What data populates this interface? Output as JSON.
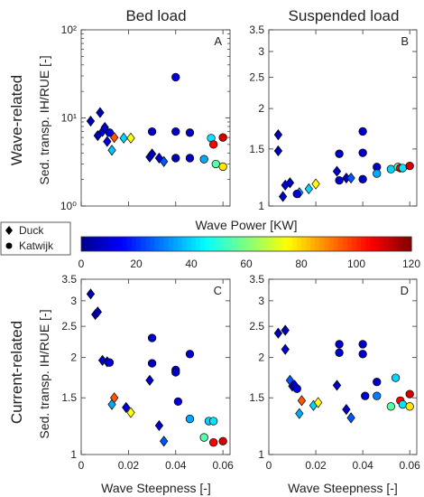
{
  "figure": {
    "col_titles": [
      "Bed load",
      "Suspended load"
    ],
    "row_titles": [
      "Wave-related",
      "Current-related"
    ],
    "ylabel": "Sed. transp. IH/RUE [-]",
    "xlabel": "Wave Steepness [-]",
    "colorbar": {
      "label": "Wave Power [KW]",
      "min": 0,
      "max": 120,
      "ticks": [
        "0",
        "20",
        "40",
        "60",
        "80",
        "100",
        "120"
      ]
    },
    "legend": [
      {
        "label": "Duck",
        "marker": "diamond"
      },
      {
        "label": "Katwijk",
        "marker": "circle"
      }
    ],
    "colormap": [
      "#00008f",
      "#0000ff",
      "#0080ff",
      "#00ffff",
      "#80ff80",
      "#ffff00",
      "#ff8000",
      "#ff0000",
      "#800000"
    ]
  },
  "chart_data": [
    {
      "panel": "A",
      "type": "scatter",
      "title": "Bed load",
      "ylabel": "Sed. transp. IH/RUE [-]",
      "xlim": [
        0,
        0.063
      ],
      "ylim": [
        1,
        100
      ],
      "yscale": "log",
      "xticks": [],
      "yticks": [
        1,
        10,
        100
      ],
      "ytick_labels": [
        "10⁰",
        "10¹",
        "10²"
      ],
      "series": [
        {
          "name": "Duck",
          "marker": "diamond",
          "points": [
            {
              "x": 0.004,
              "y": 9.2,
              "c": 5
            },
            {
              "x": 0.007,
              "y": 6.3,
              "c": 5
            },
            {
              "x": 0.008,
              "y": 11.5,
              "c": 5
            },
            {
              "x": 0.009,
              "y": 7.0,
              "c": 10
            },
            {
              "x": 0.01,
              "y": 7.8,
              "c": 8
            },
            {
              "x": 0.011,
              "y": 5.4,
              "c": 10
            },
            {
              "x": 0.013,
              "y": 4.3,
              "c": 38
            },
            {
              "x": 0.014,
              "y": 6.0,
              "c": 95
            },
            {
              "x": 0.018,
              "y": 5.9,
              "c": 40
            },
            {
              "x": 0.021,
              "y": 5.9,
              "c": 75
            },
            {
              "x": 0.029,
              "y": 3.6,
              "c": 8
            },
            {
              "x": 0.03,
              "y": 3.9,
              "c": 5
            },
            {
              "x": 0.033,
              "y": 3.5,
              "c": 8
            },
            {
              "x": 0.035,
              "y": 3.2,
              "c": 25
            }
          ]
        },
        {
          "name": "Katwijk",
          "marker": "circle",
          "points": [
            {
              "x": 0.012,
              "y": 6.8,
              "c": 10
            },
            {
              "x": 0.03,
              "y": 7.0,
              "c": 8
            },
            {
              "x": 0.04,
              "y": 29.0,
              "c": 10
            },
            {
              "x": 0.04,
              "y": 7.0,
              "c": 8
            },
            {
              "x": 0.04,
              "y": 3.5,
              "c": 5
            },
            {
              "x": 0.046,
              "y": 6.8,
              "c": 8
            },
            {
              "x": 0.046,
              "y": 3.5,
              "c": 8
            },
            {
              "x": 0.052,
              "y": 3.4,
              "c": 35
            },
            {
              "x": 0.055,
              "y": 5.9,
              "c": 42
            },
            {
              "x": 0.056,
              "y": 5.0,
              "c": 105
            },
            {
              "x": 0.057,
              "y": 3.0,
              "c": 55
            },
            {
              "x": 0.06,
              "y": 6.0,
              "c": 110
            },
            {
              "x": 0.06,
              "y": 2.8,
              "c": 78
            }
          ]
        }
      ]
    },
    {
      "panel": "B",
      "type": "scatter",
      "title": "Suspended load",
      "xlim": [
        0,
        0.063
      ],
      "ylim": [
        1,
        3.5
      ],
      "yscale": "log",
      "xticks": [],
      "yticks": [
        1,
        1.5,
        2,
        2.5,
        3,
        3.5
      ],
      "ytick_labels": [
        "1",
        "1.5",
        "2",
        "2.5",
        "3",
        "3.5"
      ],
      "series": [
        {
          "name": "Duck",
          "marker": "diamond",
          "points": [
            {
              "x": 0.004,
              "y": 1.66,
              "c": 5
            },
            {
              "x": 0.004,
              "y": 1.48,
              "c": 5
            },
            {
              "x": 0.006,
              "y": 1.07,
              "c": 8
            },
            {
              "x": 0.007,
              "y": 1.16,
              "c": 10
            },
            {
              "x": 0.009,
              "y": 1.18,
              "c": 8
            },
            {
              "x": 0.013,
              "y": 1.1,
              "c": 35
            },
            {
              "x": 0.017,
              "y": 1.13,
              "c": 40
            },
            {
              "x": 0.02,
              "y": 1.17,
              "c": 75
            },
            {
              "x": 0.029,
              "y": 1.28,
              "c": 8
            },
            {
              "x": 0.033,
              "y": 1.22,
              "c": 8
            },
            {
              "x": 0.035,
              "y": 1.22,
              "c": 25
            }
          ]
        },
        {
          "name": "Katwijk",
          "marker": "circle",
          "points": [
            {
              "x": 0.012,
              "y": 1.09,
              "c": 10
            },
            {
              "x": 0.03,
              "y": 1.2,
              "c": 8
            },
            {
              "x": 0.03,
              "y": 1.45,
              "c": 8
            },
            {
              "x": 0.04,
              "y": 1.7,
              "c": 8
            },
            {
              "x": 0.04,
              "y": 1.46,
              "c": 8
            },
            {
              "x": 0.04,
              "y": 1.21,
              "c": 8
            },
            {
              "x": 0.046,
              "y": 1.32,
              "c": 8
            },
            {
              "x": 0.046,
              "y": 1.26,
              "c": 35
            },
            {
              "x": 0.052,
              "y": 1.3,
              "c": 40
            },
            {
              "x": 0.055,
              "y": 1.32,
              "c": 55
            },
            {
              "x": 0.056,
              "y": 1.31,
              "c": 105
            },
            {
              "x": 0.057,
              "y": 1.31,
              "c": 42
            },
            {
              "x": 0.06,
              "y": 1.33,
              "c": 110
            }
          ]
        }
      ]
    },
    {
      "panel": "C",
      "type": "scatter",
      "xlabel": "Wave Steepness [-]",
      "ylabel": "Sed. transp. IH/RUE [-]",
      "xlim": [
        0,
        0.063
      ],
      "ylim": [
        1,
        3.5
      ],
      "yscale": "log",
      "xticks": [
        0,
        0.02,
        0.04,
        0.06
      ],
      "xtick_labels": [
        "0",
        "0.02",
        "0.04",
        "0.06"
      ],
      "yticks": [
        1,
        1.5,
        2,
        2.5,
        3,
        3.5
      ],
      "ytick_labels": [
        "1",
        "1.5",
        "2",
        "2.5",
        "3",
        "3.5"
      ],
      "series": [
        {
          "name": "Duck",
          "marker": "diamond",
          "points": [
            {
              "x": 0.004,
              "y": 3.15,
              "c": 5
            },
            {
              "x": 0.006,
              "y": 2.72,
              "c": 5
            },
            {
              "x": 0.007,
              "y": 2.77,
              "c": 5
            },
            {
              "x": 0.009,
              "y": 1.96,
              "c": 8
            },
            {
              "x": 0.011,
              "y": 1.94,
              "c": 8
            },
            {
              "x": 0.013,
              "y": 1.43,
              "c": 35
            },
            {
              "x": 0.014,
              "y": 1.5,
              "c": 95
            },
            {
              "x": 0.019,
              "y": 1.4,
              "c": 10
            },
            {
              "x": 0.021,
              "y": 1.35,
              "c": 75
            },
            {
              "x": 0.029,
              "y": 1.7,
              "c": 8
            },
            {
              "x": 0.033,
              "y": 1.23,
              "c": 8
            },
            {
              "x": 0.035,
              "y": 1.1,
              "c": 25
            }
          ]
        },
        {
          "name": "Katwijk",
          "marker": "circle",
          "points": [
            {
              "x": 0.012,
              "y": 1.93,
              "c": 10
            },
            {
              "x": 0.03,
              "y": 2.3,
              "c": 8
            },
            {
              "x": 0.03,
              "y": 1.92,
              "c": 8
            },
            {
              "x": 0.04,
              "y": 1.83,
              "c": 8
            },
            {
              "x": 0.04,
              "y": 1.8,
              "c": 8
            },
            {
              "x": 0.041,
              "y": 1.46,
              "c": 10
            },
            {
              "x": 0.046,
              "y": 2.05,
              "c": 8
            },
            {
              "x": 0.046,
              "y": 1.29,
              "c": 35
            },
            {
              "x": 0.052,
              "y": 1.13,
              "c": 55
            },
            {
              "x": 0.054,
              "y": 1.27,
              "c": 40
            },
            {
              "x": 0.056,
              "y": 1.27,
              "c": 42
            },
            {
              "x": 0.056,
              "y": 1.09,
              "c": 105
            },
            {
              "x": 0.06,
              "y": 1.1,
              "c": 110
            }
          ]
        }
      ]
    },
    {
      "panel": "D",
      "type": "scatter",
      "xlabel": "Wave Steepness [-]",
      "xlim": [
        0,
        0.063
      ],
      "ylim": [
        1,
        3.5
      ],
      "yscale": "log",
      "xticks": [
        0,
        0.02,
        0.04,
        0.06
      ],
      "xtick_labels": [
        "0",
        "0.02",
        "0.04",
        "0.06"
      ],
      "yticks": [
        1,
        1.5,
        2,
        2.5,
        3,
        3.5
      ],
      "ytick_labels": [
        "1",
        "1.5",
        "2",
        "2.5",
        "3",
        "3.5"
      ],
      "series": [
        {
          "name": "Duck",
          "marker": "diamond",
          "points": [
            {
              "x": 0.004,
              "y": 2.38,
              "c": 5
            },
            {
              "x": 0.007,
              "y": 2.43,
              "c": 5
            },
            {
              "x": 0.007,
              "y": 2.12,
              "c": 8
            },
            {
              "x": 0.009,
              "y": 1.7,
              "c": 25
            },
            {
              "x": 0.01,
              "y": 1.63,
              "c": 8
            },
            {
              "x": 0.011,
              "y": 1.64,
              "c": 10
            },
            {
              "x": 0.013,
              "y": 1.34,
              "c": 35
            },
            {
              "x": 0.014,
              "y": 1.47,
              "c": 95
            },
            {
              "x": 0.019,
              "y": 1.42,
              "c": 40
            },
            {
              "x": 0.021,
              "y": 1.45,
              "c": 75
            },
            {
              "x": 0.029,
              "y": 1.64,
              "c": 8
            },
            {
              "x": 0.033,
              "y": 1.38,
              "c": 8
            },
            {
              "x": 0.035,
              "y": 1.3,
              "c": 25
            }
          ]
        },
        {
          "name": "Katwijk",
          "marker": "circle",
          "points": [
            {
              "x": 0.012,
              "y": 1.6,
              "c": 10
            },
            {
              "x": 0.03,
              "y": 2.2,
              "c": 8
            },
            {
              "x": 0.03,
              "y": 2.07,
              "c": 8
            },
            {
              "x": 0.04,
              "y": 2.2,
              "c": 8
            },
            {
              "x": 0.04,
              "y": 2.05,
              "c": 8
            },
            {
              "x": 0.041,
              "y": 1.52,
              "c": 10
            },
            {
              "x": 0.046,
              "y": 1.68,
              "c": 8
            },
            {
              "x": 0.046,
              "y": 1.52,
              "c": 30
            },
            {
              "x": 0.052,
              "y": 1.41,
              "c": 55
            },
            {
              "x": 0.054,
              "y": 1.73,
              "c": 40
            },
            {
              "x": 0.056,
              "y": 1.47,
              "c": 105
            },
            {
              "x": 0.057,
              "y": 1.43,
              "c": 42
            },
            {
              "x": 0.06,
              "y": 1.54,
              "c": 110
            },
            {
              "x": 0.06,
              "y": 1.41,
              "c": 78
            }
          ]
        }
      ]
    }
  ]
}
